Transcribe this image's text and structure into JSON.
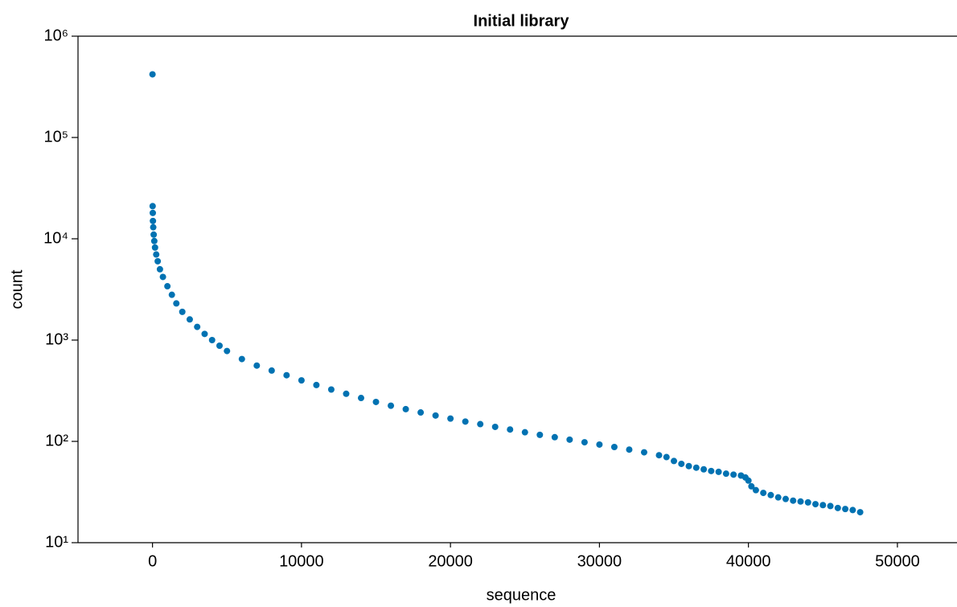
{
  "chart_data": {
    "type": "scatter",
    "title": "Initial library",
    "x_label": "sequence",
    "y_label": "count",
    "color": "#0072b2",
    "y_scale": "log",
    "xlim": [
      -5000,
      54000
    ],
    "xticks": [
      0,
      10000,
      20000,
      30000,
      40000,
      50000
    ],
    "ylim": [
      10,
      1000000
    ],
    "yticks": [
      {
        "value": 10,
        "label": "10¹"
      },
      {
        "value": 100,
        "label": "10²"
      },
      {
        "value": 1000,
        "label": "10³"
      },
      {
        "value": 10000,
        "label": "10⁴"
      },
      {
        "value": 100000,
        "label": "10⁵"
      },
      {
        "value": 1000000,
        "label": "10⁶"
      }
    ],
    "x": [
      0,
      10,
      20,
      30,
      50,
      80,
      120,
      170,
      250,
      350,
      500,
      700,
      1000,
      1300,
      1600,
      2000,
      2500,
      3000,
      3500,
      4000,
      4500,
      5000,
      6000,
      7000,
      8000,
      9000,
      10000,
      11000,
      12000,
      13000,
      14000,
      15000,
      16000,
      17000,
      18000,
      19000,
      20000,
      21000,
      22000,
      23000,
      24000,
      25000,
      26000,
      27000,
      28000,
      29000,
      30000,
      31000,
      32000,
      33000,
      34000,
      34500,
      35000,
      35500,
      36000,
      36500,
      37000,
      37500,
      38000,
      38500,
      39000,
      39500,
      39800,
      40000,
      40200,
      40500,
      41000,
      41500,
      42000,
      42500,
      43000,
      43500,
      44000,
      44500,
      45000,
      45500,
      46000,
      46500,
      47000,
      47500
    ],
    "values": [
      420000,
      21000,
      18000,
      15000,
      13000,
      11000,
      9500,
      8200,
      7000,
      6000,
      5000,
      4200,
      3400,
      2800,
      2300,
      1900,
      1600,
      1350,
      1150,
      1000,
      880,
      780,
      650,
      560,
      500,
      450,
      400,
      360,
      325,
      295,
      268,
      245,
      225,
      208,
      193,
      180,
      168,
      157,
      148,
      139,
      131,
      123,
      116,
      110,
      104,
      98,
      93,
      88,
      83,
      78,
      73,
      70,
      64,
      60,
      57,
      55,
      53,
      51,
      50,
      48,
      47,
      46,
      44,
      41,
      36,
      33,
      31,
      29.5,
      28,
      27,
      26,
      25.5,
      25,
      24,
      23.5,
      23,
      22,
      21.5,
      21,
      20
    ]
  }
}
